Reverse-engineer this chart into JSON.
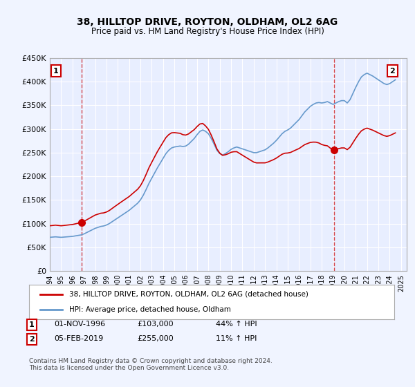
{
  "title": "38, HILLTOP DRIVE, ROYTON, OLDHAM, OL2 6AG",
  "subtitle": "Price paid vs. HM Land Registry's House Price Index (HPI)",
  "ylim": [
    0,
    450000
  ],
  "yticks": [
    0,
    50000,
    100000,
    150000,
    200000,
    250000,
    300000,
    350000,
    400000,
    450000
  ],
  "ytick_labels": [
    "£0",
    "£50K",
    "£100K",
    "£150K",
    "£200K",
    "£250K",
    "£300K",
    "£350K",
    "£400K",
    "£450K"
  ],
  "legend_line1": "38, HILLTOP DRIVE, ROYTON, OLDHAM, OL2 6AG (detached house)",
  "legend_line2": "HPI: Average price, detached house, Oldham",
  "line1_color": "#cc0000",
  "line2_color": "#6699cc",
  "annotation1_label": "1",
  "annotation1_date": "01-NOV-1996",
  "annotation1_price": "£103,000",
  "annotation1_hpi": "44% ↑ HPI",
  "annotation2_label": "2",
  "annotation2_date": "05-FEB-2019",
  "annotation2_price": "£255,000",
  "annotation2_hpi": "11% ↑ HPI",
  "footnote": "Contains HM Land Registry data © Crown copyright and database right 2024.\nThis data is licensed under the Open Government Licence v3.0.",
  "background_color": "#f0f4ff",
  "plot_bg_color": "#e8eeff",
  "grid_color": "#ffffff",
  "hpi_data": {
    "dates": [
      1994.0,
      1994.25,
      1994.5,
      1994.75,
      1995.0,
      1995.25,
      1995.5,
      1995.75,
      1996.0,
      1996.25,
      1996.5,
      1996.75,
      1997.0,
      1997.25,
      1997.5,
      1997.75,
      1998.0,
      1998.25,
      1998.5,
      1998.75,
      1999.0,
      1999.25,
      1999.5,
      1999.75,
      2000.0,
      2000.25,
      2000.5,
      2000.75,
      2001.0,
      2001.25,
      2001.5,
      2001.75,
      2002.0,
      2002.25,
      2002.5,
      2002.75,
      2003.0,
      2003.25,
      2003.5,
      2003.75,
      2004.0,
      2004.25,
      2004.5,
      2004.75,
      2005.0,
      2005.25,
      2005.5,
      2005.75,
      2006.0,
      2006.25,
      2006.5,
      2006.75,
      2007.0,
      2007.25,
      2007.5,
      2007.75,
      2008.0,
      2008.25,
      2008.5,
      2008.75,
      2009.0,
      2009.25,
      2009.5,
      2009.75,
      2010.0,
      2010.25,
      2010.5,
      2010.75,
      2011.0,
      2011.25,
      2011.5,
      2011.75,
      2012.0,
      2012.25,
      2012.5,
      2012.75,
      2013.0,
      2013.25,
      2013.5,
      2013.75,
      2014.0,
      2014.25,
      2014.5,
      2014.75,
      2015.0,
      2015.25,
      2015.5,
      2015.75,
      2016.0,
      2016.25,
      2016.5,
      2016.75,
      2017.0,
      2017.25,
      2017.5,
      2017.75,
      2018.0,
      2018.25,
      2018.5,
      2018.75,
      2019.0,
      2019.25,
      2019.5,
      2019.75,
      2020.0,
      2020.25,
      2020.5,
      2020.75,
      2021.0,
      2021.25,
      2021.5,
      2021.75,
      2022.0,
      2022.25,
      2022.5,
      2022.75,
      2023.0,
      2023.25,
      2023.5,
      2023.75,
      2024.0,
      2024.25,
      2024.5
    ],
    "values": [
      71000,
      71500,
      72000,
      71500,
      71000,
      71500,
      72000,
      72500,
      73000,
      74000,
      75000,
      76000,
      78000,
      81000,
      84000,
      87000,
      90000,
      92000,
      94000,
      95000,
      97000,
      100000,
      104000,
      108000,
      112000,
      116000,
      120000,
      124000,
      128000,
      133000,
      138000,
      143000,
      150000,
      160000,
      172000,
      185000,
      196000,
      207000,
      218000,
      228000,
      238000,
      248000,
      255000,
      260000,
      262000,
      263000,
      264000,
      263000,
      264000,
      268000,
      274000,
      280000,
      288000,
      295000,
      298000,
      295000,
      290000,
      280000,
      268000,
      255000,
      248000,
      245000,
      248000,
      252000,
      257000,
      260000,
      262000,
      260000,
      258000,
      256000,
      254000,
      252000,
      250000,
      250000,
      252000,
      254000,
      256000,
      260000,
      265000,
      270000,
      276000,
      283000,
      290000,
      295000,
      298000,
      302000,
      308000,
      314000,
      320000,
      328000,
      336000,
      342000,
      348000,
      352000,
      355000,
      356000,
      355000,
      356000,
      358000,
      355000,
      352000,
      355000,
      358000,
      360000,
      360000,
      355000,
      362000,
      375000,
      388000,
      400000,
      410000,
      415000,
      418000,
      415000,
      412000,
      408000,
      404000,
      400000,
      396000,
      394000,
      396000,
      400000,
      404000
    ]
  },
  "sale1_x": 1996.83,
  "sale1_y": 103000,
  "sale2_x": 2019.09,
  "sale2_y": 255000,
  "xmin": 1994,
  "xmax": 2025.5,
  "xticks": [
    1994,
    1995,
    1996,
    1997,
    1998,
    1999,
    2000,
    2001,
    2002,
    2003,
    2004,
    2005,
    2006,
    2007,
    2008,
    2009,
    2010,
    2011,
    2012,
    2013,
    2014,
    2015,
    2016,
    2017,
    2018,
    2019,
    2020,
    2021,
    2022,
    2023,
    2024,
    2025
  ],
  "vline1_x": 1996.83,
  "vline2_x": 2019.09
}
